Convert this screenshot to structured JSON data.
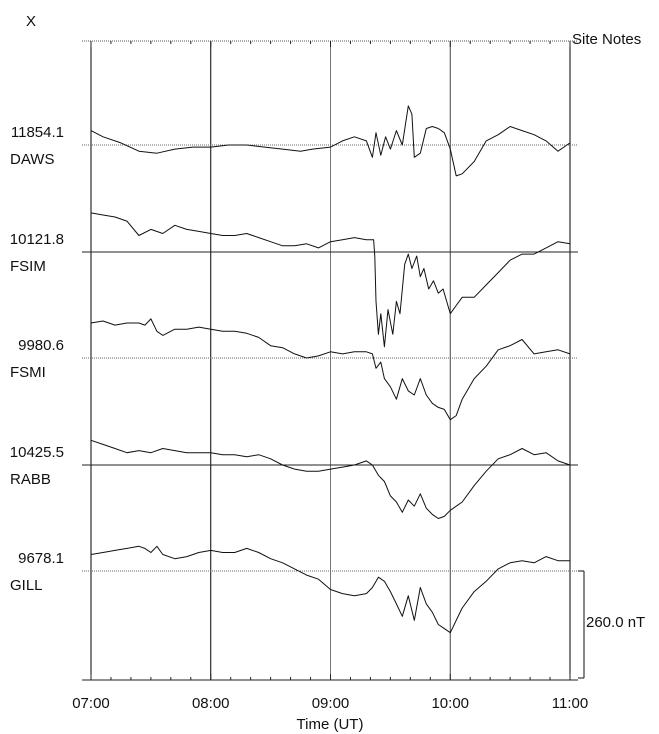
{
  "chart_data": {
    "type": "line",
    "title": "",
    "component_label": "X",
    "site_notes_label": "Site Notes",
    "xlabel": "Time (UT)",
    "ylabel": "",
    "x_range": [
      "07:00",
      "11:00"
    ],
    "x_ticks": [
      "07:00",
      "08:00",
      "09:00",
      "10:00",
      "11:00"
    ],
    "scale_bar": {
      "label": "260.0 nT",
      "value": 260.0,
      "unit": "nT"
    },
    "grid": true,
    "series": [
      {
        "name": "DAWS",
        "baseline_value": "11854.1",
        "points": [
          [
            7.0,
            35
          ],
          [
            7.1,
            20
          ],
          [
            7.25,
            5
          ],
          [
            7.4,
            -15
          ],
          [
            7.55,
            -20
          ],
          [
            7.7,
            -10
          ],
          [
            7.85,
            -5
          ],
          [
            8.0,
            -5
          ],
          [
            8.15,
            0
          ],
          [
            8.3,
            0
          ],
          [
            8.45,
            -5
          ],
          [
            8.6,
            -10
          ],
          [
            8.75,
            -15
          ],
          [
            8.85,
            -10
          ],
          [
            9.0,
            -5
          ],
          [
            9.1,
            10
          ],
          [
            9.2,
            20
          ],
          [
            9.3,
            10
          ],
          [
            9.35,
            -30
          ],
          [
            9.38,
            30
          ],
          [
            9.42,
            -25
          ],
          [
            9.46,
            20
          ],
          [
            9.5,
            -10
          ],
          [
            9.55,
            35
          ],
          [
            9.6,
            0
          ],
          [
            9.65,
            95
          ],
          [
            9.68,
            75
          ],
          [
            9.7,
            -30
          ],
          [
            9.75,
            -20
          ],
          [
            9.8,
            40
          ],
          [
            9.85,
            45
          ],
          [
            9.9,
            40
          ],
          [
            9.95,
            30
          ],
          [
            10.0,
            -10
          ],
          [
            10.05,
            -75
          ],
          [
            10.1,
            -70
          ],
          [
            10.2,
            -40
          ],
          [
            10.3,
            10
          ],
          [
            10.4,
            25
          ],
          [
            10.5,
            45
          ],
          [
            10.6,
            35
          ],
          [
            10.7,
            25
          ],
          [
            10.8,
            10
          ],
          [
            10.9,
            -15
          ],
          [
            11.0,
            5
          ]
        ]
      },
      {
        "name": "FSIM",
        "baseline_value": "10121.8",
        "points": [
          [
            7.0,
            95
          ],
          [
            7.1,
            90
          ],
          [
            7.2,
            85
          ],
          [
            7.3,
            75
          ],
          [
            7.4,
            40
          ],
          [
            7.5,
            55
          ],
          [
            7.6,
            45
          ],
          [
            7.7,
            65
          ],
          [
            7.8,
            55
          ],
          [
            7.9,
            50
          ],
          [
            8.0,
            45
          ],
          [
            8.1,
            40
          ],
          [
            8.2,
            40
          ],
          [
            8.3,
            45
          ],
          [
            8.4,
            35
          ],
          [
            8.5,
            25
          ],
          [
            8.6,
            15
          ],
          [
            8.7,
            15
          ],
          [
            8.8,
            20
          ],
          [
            8.9,
            10
          ],
          [
            9.0,
            25
          ],
          [
            9.1,
            30
          ],
          [
            9.2,
            35
          ],
          [
            9.3,
            30
          ],
          [
            9.36,
            30
          ],
          [
            9.37,
            -10
          ],
          [
            9.38,
            -120
          ],
          [
            9.4,
            -200
          ],
          [
            9.42,
            -150
          ],
          [
            9.45,
            -230
          ],
          [
            9.48,
            -140
          ],
          [
            9.52,
            -200
          ],
          [
            9.55,
            -120
          ],
          [
            9.58,
            -150
          ],
          [
            9.62,
            -30
          ],
          [
            9.65,
            -5
          ],
          [
            9.68,
            -40
          ],
          [
            9.72,
            -10
          ],
          [
            9.75,
            -60
          ],
          [
            9.78,
            -40
          ],
          [
            9.82,
            -90
          ],
          [
            9.86,
            -70
          ],
          [
            9.9,
            -100
          ],
          [
            9.94,
            -90
          ],
          [
            9.97,
            -120
          ],
          [
            10.0,
            -150
          ],
          [
            10.05,
            -130
          ],
          [
            10.1,
            -110
          ],
          [
            10.2,
            -110
          ],
          [
            10.3,
            -80
          ],
          [
            10.4,
            -50
          ],
          [
            10.5,
            -20
          ],
          [
            10.6,
            -5
          ],
          [
            10.7,
            -5
          ],
          [
            10.8,
            10
          ],
          [
            10.9,
            25
          ],
          [
            11.0,
            20
          ]
        ]
      },
      {
        "name": "FSMI",
        "baseline_value": "9980.6",
        "points": [
          [
            7.0,
            85
          ],
          [
            7.1,
            90
          ],
          [
            7.2,
            80
          ],
          [
            7.3,
            85
          ],
          [
            7.4,
            85
          ],
          [
            7.45,
            80
          ],
          [
            7.5,
            95
          ],
          [
            7.55,
            65
          ],
          [
            7.6,
            55
          ],
          [
            7.7,
            70
          ],
          [
            7.8,
            70
          ],
          [
            7.9,
            75
          ],
          [
            8.0,
            70
          ],
          [
            8.1,
            65
          ],
          [
            8.2,
            65
          ],
          [
            8.3,
            60
          ],
          [
            8.4,
            50
          ],
          [
            8.5,
            30
          ],
          [
            8.6,
            25
          ],
          [
            8.7,
            10
          ],
          [
            8.8,
            0
          ],
          [
            8.9,
            5
          ],
          [
            9.0,
            15
          ],
          [
            9.1,
            10
          ],
          [
            9.2,
            15
          ],
          [
            9.3,
            15
          ],
          [
            9.35,
            10
          ],
          [
            9.38,
            -25
          ],
          [
            9.42,
            -10
          ],
          [
            9.45,
            -50
          ],
          [
            9.5,
            -70
          ],
          [
            9.55,
            -100
          ],
          [
            9.6,
            -50
          ],
          [
            9.65,
            -80
          ],
          [
            9.7,
            -90
          ],
          [
            9.75,
            -50
          ],
          [
            9.8,
            -90
          ],
          [
            9.85,
            -110
          ],
          [
            9.9,
            -120
          ],
          [
            9.95,
            -125
          ],
          [
            10.0,
            -150
          ],
          [
            10.05,
            -140
          ],
          [
            10.1,
            -100
          ],
          [
            10.2,
            -50
          ],
          [
            10.3,
            -20
          ],
          [
            10.4,
            20
          ],
          [
            10.5,
            30
          ],
          [
            10.6,
            45
          ],
          [
            10.7,
            10
          ],
          [
            10.8,
            15
          ],
          [
            10.9,
            20
          ],
          [
            11.0,
            10
          ]
        ]
      },
      {
        "name": "RABB",
        "baseline_value": "10425.5",
        "points": [
          [
            7.0,
            60
          ],
          [
            7.1,
            50
          ],
          [
            7.2,
            40
          ],
          [
            7.3,
            30
          ],
          [
            7.4,
            35
          ],
          [
            7.5,
            30
          ],
          [
            7.6,
            40
          ],
          [
            7.7,
            35
          ],
          [
            7.8,
            30
          ],
          [
            7.9,
            30
          ],
          [
            8.0,
            30
          ],
          [
            8.1,
            25
          ],
          [
            8.2,
            25
          ],
          [
            8.3,
            20
          ],
          [
            8.4,
            25
          ],
          [
            8.5,
            15
          ],
          [
            8.6,
            0
          ],
          [
            8.7,
            -10
          ],
          [
            8.8,
            -15
          ],
          [
            8.9,
            -15
          ],
          [
            9.0,
            -10
          ],
          [
            9.1,
            -5
          ],
          [
            9.2,
            0
          ],
          [
            9.3,
            10
          ],
          [
            9.35,
            0
          ],
          [
            9.4,
            -25
          ],
          [
            9.45,
            -40
          ],
          [
            9.5,
            -75
          ],
          [
            9.55,
            -90
          ],
          [
            9.6,
            -115
          ],
          [
            9.65,
            -85
          ],
          [
            9.7,
            -100
          ],
          [
            9.75,
            -70
          ],
          [
            9.8,
            -105
          ],
          [
            9.85,
            -120
          ],
          [
            9.9,
            -130
          ],
          [
            9.95,
            -125
          ],
          [
            10.0,
            -110
          ],
          [
            10.05,
            -100
          ],
          [
            10.1,
            -90
          ],
          [
            10.2,
            -50
          ],
          [
            10.3,
            -15
          ],
          [
            10.4,
            15
          ],
          [
            10.5,
            25
          ],
          [
            10.6,
            40
          ],
          [
            10.7,
            25
          ],
          [
            10.8,
            30
          ],
          [
            10.9,
            10
          ],
          [
            11.0,
            0
          ]
        ]
      },
      {
        "name": "GILL",
        "baseline_value": "9678.1",
        "points": [
          [
            7.0,
            40
          ],
          [
            7.1,
            45
          ],
          [
            7.2,
            50
          ],
          [
            7.3,
            55
          ],
          [
            7.4,
            60
          ],
          [
            7.45,
            55
          ],
          [
            7.5,
            45
          ],
          [
            7.55,
            60
          ],
          [
            7.6,
            40
          ],
          [
            7.7,
            30
          ],
          [
            7.8,
            35
          ],
          [
            7.9,
            45
          ],
          [
            8.0,
            50
          ],
          [
            8.1,
            45
          ],
          [
            8.2,
            45
          ],
          [
            8.3,
            55
          ],
          [
            8.4,
            45
          ],
          [
            8.5,
            30
          ],
          [
            8.6,
            20
          ],
          [
            8.7,
            5
          ],
          [
            8.8,
            -10
          ],
          [
            8.9,
            -20
          ],
          [
            9.0,
            -45
          ],
          [
            9.1,
            -55
          ],
          [
            9.2,
            -60
          ],
          [
            9.3,
            -55
          ],
          [
            9.35,
            -40
          ],
          [
            9.4,
            -15
          ],
          [
            9.45,
            -25
          ],
          [
            9.5,
            -50
          ],
          [
            9.55,
            -80
          ],
          [
            9.6,
            -110
          ],
          [
            9.65,
            -60
          ],
          [
            9.7,
            -120
          ],
          [
            9.75,
            -40
          ],
          [
            9.8,
            -80
          ],
          [
            9.85,
            -100
          ],
          [
            9.9,
            -130
          ],
          [
            9.95,
            -140
          ],
          [
            10.0,
            -150
          ],
          [
            10.05,
            -120
          ],
          [
            10.1,
            -90
          ],
          [
            10.2,
            -50
          ],
          [
            10.3,
            -25
          ],
          [
            10.4,
            5
          ],
          [
            10.5,
            20
          ],
          [
            10.6,
            25
          ],
          [
            10.7,
            20
          ],
          [
            10.8,
            35
          ],
          [
            10.9,
            25
          ],
          [
            11.0,
            25
          ]
        ]
      }
    ]
  }
}
